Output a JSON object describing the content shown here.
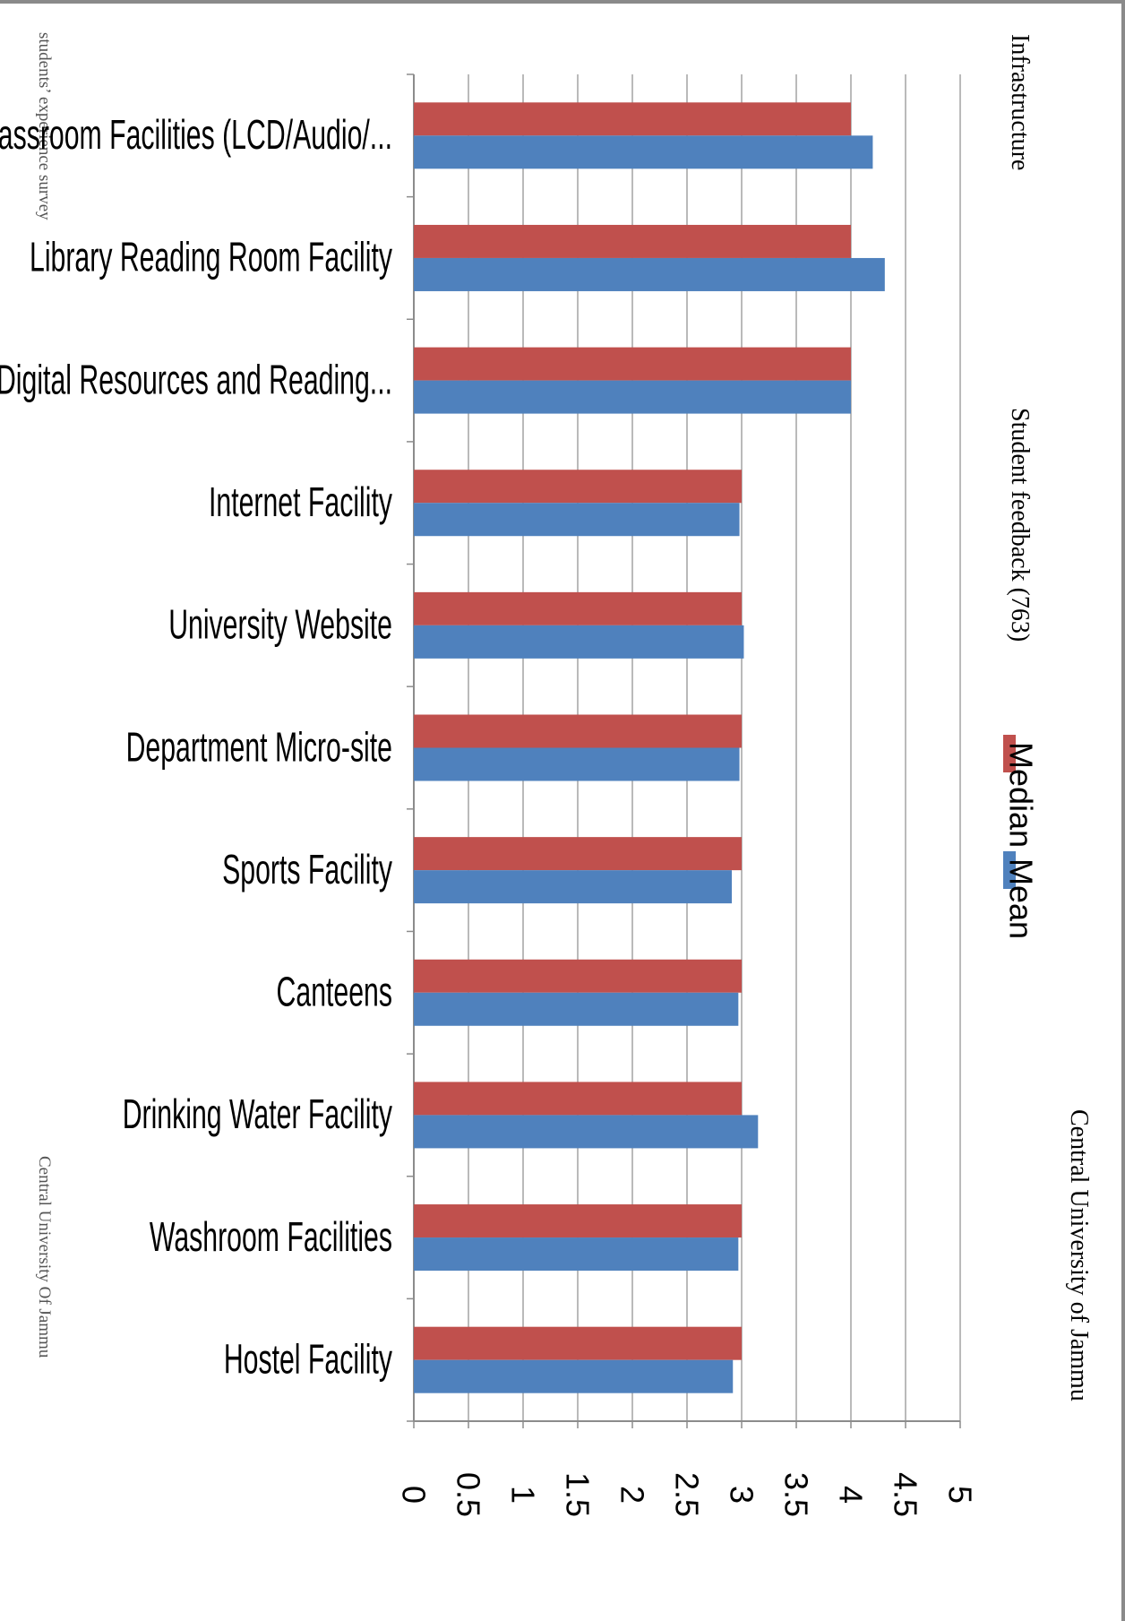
{
  "titles": {
    "infrastructure": "Infrastructure",
    "feedback": "Student feedback (763)",
    "university": "Central University of Jammu"
  },
  "side_notes": {
    "survey": "students’ experience survey",
    "university": "Central University Of Jammu"
  },
  "colors": {
    "median": "#c0504d",
    "mean": "#4f81bd",
    "grid": "#8c8c8c",
    "axis": "#8c8c8c"
  },
  "chart_data": {
    "type": "bar",
    "orientation": "horizontal",
    "categories": [
      "Classroom Facilities (LCD/Audio/...",
      "Library Reading Room Facility",
      "Library Digital Resources and Reading...",
      "Internet Facility",
      "University Website",
      "Department Micro-site",
      "Sports Facility",
      "Canteens",
      "Drinking Water Facility",
      "Washroom Facilities",
      "Hostel Facility"
    ],
    "series": [
      {
        "name": "Median",
        "color": "#c0504d",
        "values": [
          4,
          4,
          4,
          3,
          3,
          3,
          3,
          3,
          3,
          3,
          3
        ]
      },
      {
        "name": "Mean",
        "color": "#4f81bd",
        "values": [
          4.2,
          4.31,
          4.0,
          2.98,
          3.02,
          2.98,
          2.91,
          2.97,
          3.15,
          2.97,
          2.92
        ]
      }
    ],
    "value_ticks": [
      "0",
      "0.5",
      "1",
      "1.5",
      "2",
      "2.5",
      "3",
      "3.5",
      "4",
      "4.5",
      "5"
    ],
    "xlim": [
      0,
      5
    ],
    "grid": true,
    "legend": {
      "position": "right",
      "entries": [
        "Median",
        "Mean"
      ]
    }
  }
}
